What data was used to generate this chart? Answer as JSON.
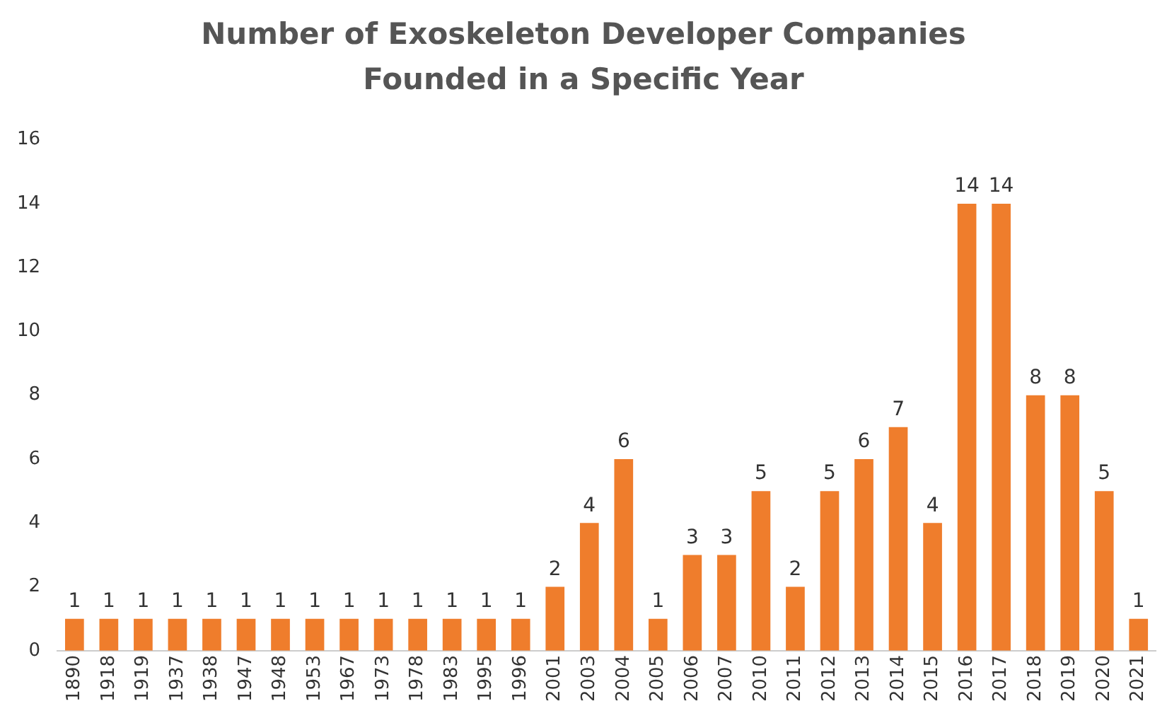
{
  "chart_data": {
    "type": "bar",
    "title": "Number of Exoskeleton Developer Companies Founded in a Specific Year",
    "categories": [
      "1890",
      "1918",
      "1919",
      "1937",
      "1938",
      "1947",
      "1948",
      "1953",
      "1967",
      "1973",
      "1978",
      "1983",
      "1995",
      "1996",
      "2001",
      "2003",
      "2004",
      "2005",
      "2006",
      "2007",
      "2010",
      "2011",
      "2012",
      "2013",
      "2014",
      "2015",
      "2016",
      "2017",
      "2018",
      "2019",
      "2020",
      "2021"
    ],
    "values": [
      1,
      1,
      1,
      1,
      1,
      1,
      1,
      1,
      1,
      1,
      1,
      1,
      1,
      1,
      2,
      4,
      6,
      1,
      3,
      3,
      5,
      2,
      5,
      6,
      7,
      4,
      14,
      14,
      8,
      8,
      5,
      1
    ],
    "color": "#ef7d2c",
    "ylim": [
      0,
      16
    ],
    "yticks": [
      0,
      2,
      4,
      6,
      8,
      10,
      12,
      14,
      16
    ],
    "grid": false,
    "data_labels": true
  }
}
